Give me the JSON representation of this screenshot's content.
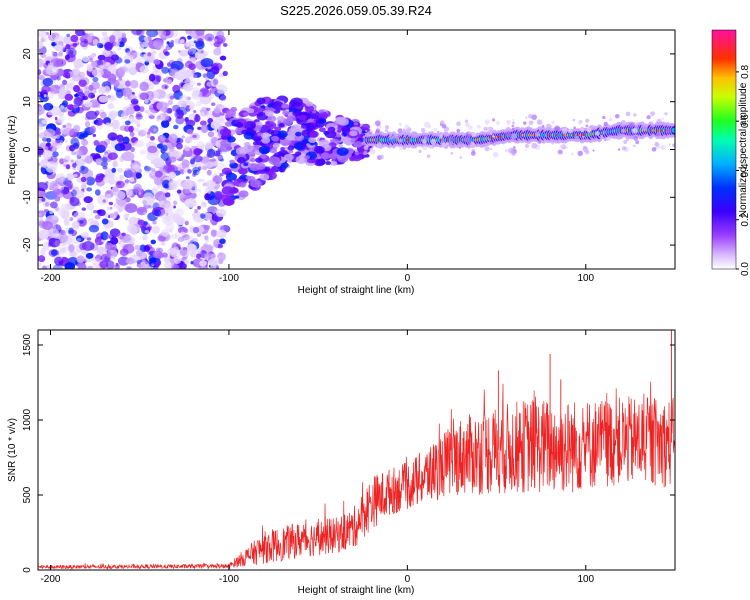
{
  "title": "S225.2026.059.05.39.R24",
  "chart_data": [
    {
      "type": "heatmap",
      "name": "spectrogram",
      "xlabel": "Height of straight line (km)",
      "ylabel": "Frequency (Hz)",
      "xlim": [
        -207,
        150
      ],
      "ylim": [
        -25,
        25
      ],
      "xticks": [
        -200,
        -100,
        0,
        100
      ],
      "xtick_labels": [
        "-200",
        "-100",
        "0",
        "100"
      ],
      "yticks": [
        20,
        10,
        0,
        -10,
        -20
      ],
      "ytick_labels": [
        "20",
        "10",
        "0",
        "-10",
        "-20"
      ],
      "colorbar": {
        "label": "Normalized spectral amplitude",
        "range": [
          0,
          0.97
        ],
        "ticks": [
          0,
          0.2,
          0.4,
          0.6,
          0.8
        ],
        "tick_labels": [
          "0.0",
          "0.2",
          "0.4",
          "0.6",
          "0.8"
        ],
        "colors": [
          "#ffffff",
          "#b060ff",
          "#5a00ff",
          "#0000ff",
          "#00d8ff",
          "#00ff40",
          "#d8ff00",
          "#ffb000",
          "#ff1010",
          "#ff1090"
        ]
      },
      "ridge": {
        "x": [
          -100,
          -80,
          -60,
          -40,
          -20,
          0,
          20,
          40,
          60,
          80,
          100,
          120,
          150
        ],
        "frequency": [
          -2,
          2,
          4,
          2,
          2,
          2,
          2,
          2,
          3,
          3,
          3,
          4,
          4
        ]
      },
      "noise_region_x": [
        -207,
        -102
      ]
    },
    {
      "type": "line",
      "name": "snr",
      "xlabel": "Height of straight line (km)",
      "ylabel": "SNR (10 * v/v)",
      "xlim": [
        -207,
        150
      ],
      "ylim": [
        0,
        1600
      ],
      "xticks": [
        -200,
        -100,
        0,
        100
      ],
      "xtick_labels": [
        "-200",
        "-100",
        "0",
        "100"
      ],
      "yticks": [
        0,
        500,
        1000,
        1500
      ],
      "ytick_labels": [
        "0",
        "500",
        "1000",
        "1500"
      ],
      "color": "#ee2222",
      "envelope": {
        "x": [
          -207,
          -100,
          -95,
          -80,
          -60,
          -40,
          -30,
          -20,
          -10,
          0,
          10,
          20,
          30,
          50,
          70,
          90,
          110,
          130,
          145,
          150
        ],
        "mean": [
          20,
          25,
          60,
          150,
          200,
          230,
          280,
          450,
          520,
          560,
          620,
          700,
          760,
          800,
          830,
          820,
          850,
          860,
          850,
          850
        ],
        "amplitude": [
          12,
          15,
          40,
          110,
          120,
          120,
          140,
          180,
          160,
          160,
          190,
          220,
          260,
          300,
          320,
          320,
          300,
          300,
          300,
          300
        ]
      },
      "spikes": [
        {
          "x": 148,
          "y": 1600
        },
        {
          "x": 80,
          "y": 1440
        },
        {
          "x": 51,
          "y": 1330
        },
        {
          "x": 86,
          "y": 1270
        }
      ]
    }
  ]
}
